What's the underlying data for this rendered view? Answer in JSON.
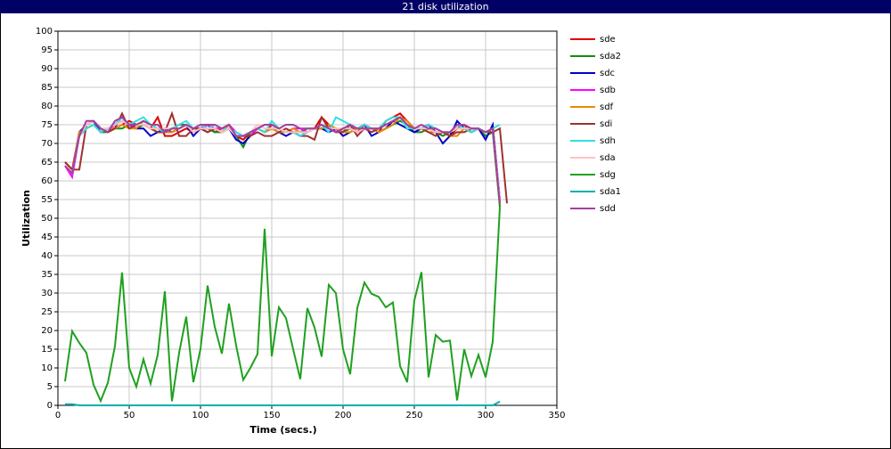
{
  "chart_data": {
    "type": "line",
    "title": "21 disk utilization",
    "x_label": "Time (secs.)",
    "y_label": "Utilization",
    "xlim": [
      0,
      350
    ],
    "xticks": [
      0,
      50,
      100,
      150,
      200,
      250,
      300,
      350
    ],
    "ylim": [
      0,
      100
    ],
    "yticks": [
      0,
      5,
      10,
      15,
      20,
      25,
      30,
      35,
      40,
      45,
      50,
      55,
      60,
      65,
      70,
      75,
      80,
      85,
      90,
      95,
      100
    ],
    "grid": true,
    "legend": "right",
    "x": [
      5,
      10,
      15,
      20,
      25,
      30,
      35,
      40,
      45,
      50,
      55,
      60,
      65,
      70,
      75,
      80,
      85,
      90,
      95,
      100,
      105,
      110,
      115,
      120,
      125,
      130,
      135,
      140,
      145,
      150,
      155,
      160,
      165,
      170,
      175,
      180,
      185,
      190,
      195,
      200,
      205,
      210,
      215,
      220,
      225,
      230,
      235,
      240,
      245,
      250,
      255,
      260,
      265,
      270,
      275,
      280,
      285,
      290,
      295,
      300,
      305,
      310,
      315
    ],
    "series": [
      {
        "name": "sde",
        "color": "#e00000",
        "values": [
          65,
          63,
          73,
          75,
          76,
          74,
          73,
          74,
          75,
          76,
          75,
          75,
          74,
          77,
          72,
          72,
          73,
          74,
          73,
          74,
          75,
          73,
          74,
          75,
          72,
          71,
          73,
          74,
          73,
          75,
          74,
          73,
          73,
          72,
          73,
          74,
          77,
          75,
          73,
          74,
          74,
          73,
          75,
          74,
          73,
          76,
          77,
          78,
          76,
          74,
          74,
          75,
          73,
          73,
          72,
          74,
          75,
          73,
          74,
          73,
          74,
          54,
          null
        ]
      },
      {
        "name": "sda2",
        "color": "#109010",
        "values": [
          64,
          62,
          72,
          74,
          75,
          73,
          73,
          74,
          74,
          75,
          74,
          75,
          74,
          73,
          73,
          74,
          75,
          75,
          74,
          74,
          74,
          73,
          73,
          74,
          72,
          69,
          73,
          74,
          73,
          74,
          74,
          73,
          73,
          73,
          74,
          74,
          74,
          75,
          74,
          73,
          74,
          73,
          74,
          74,
          73,
          74,
          75,
          76,
          75,
          73,
          73,
          74,
          73,
          72,
          73,
          74,
          74,
          73,
          74,
          72,
          73,
          53,
          null
        ]
      },
      {
        "name": "sdc",
        "color": "#0000c8",
        "values": [
          64,
          62,
          73,
          75,
          76,
          73,
          74,
          75,
          76,
          75,
          74,
          74,
          72,
          73,
          74,
          73,
          74,
          75,
          72,
          74,
          73,
          74,
          73,
          74,
          71,
          70,
          72,
          74,
          73,
          74,
          73,
          72,
          73,
          73,
          73,
          74,
          74,
          73,
          74,
          72,
          73,
          74,
          75,
          72,
          73,
          74,
          76,
          75,
          74,
          73,
          74,
          75,
          73,
          70,
          72,
          76,
          74,
          73,
          74,
          71,
          75,
          55,
          null
        ]
      },
      {
        "name": "sdb",
        "color": "#ff00ff",
        "values": [
          64,
          61,
          72,
          75,
          76,
          74,
          73,
          75,
          77,
          75,
          74,
          76,
          75,
          74,
          73,
          73,
          74,
          75,
          74,
          74,
          75,
          74,
          74,
          75,
          73,
          72,
          72,
          74,
          75,
          75,
          74,
          73,
          74,
          74,
          73,
          74,
          75,
          74,
          73,
          74,
          74,
          74,
          75,
          74,
          74,
          75,
          76,
          77,
          75,
          74,
          74,
          74,
          74,
          73,
          73,
          75,
          74,
          74,
          74,
          73,
          74,
          55,
          null
        ]
      },
      {
        "name": "sdf",
        "color": "#e88a00",
        "values": [
          64,
          62,
          73,
          74,
          75,
          73,
          74,
          74,
          75,
          74,
          74,
          76,
          75,
          74,
          73,
          73,
          74,
          75,
          74,
          74,
          74,
          74,
          73,
          75,
          72,
          72,
          73,
          74,
          73,
          74,
          73,
          73,
          74,
          73,
          73,
          74,
          74,
          75,
          74,
          73,
          73,
          74,
          74,
          74,
          73,
          74,
          75,
          77,
          76,
          74,
          74,
          73,
          73,
          73,
          72,
          72,
          74,
          73,
          74,
          73,
          74,
          54,
          null
        ]
      },
      {
        "name": "sdi",
        "color": "#a03030",
        "values": [
          65,
          63,
          63,
          75,
          76,
          74,
          73,
          74,
          78,
          74,
          75,
          75,
          74,
          73,
          73,
          78,
          72,
          72,
          74,
          74,
          73,
          74,
          73,
          74,
          72,
          72,
          72,
          73,
          72,
          72,
          73,
          74,
          73,
          72,
          72,
          71,
          77,
          74,
          73,
          73,
          75,
          72,
          74,
          73,
          74,
          75,
          76,
          77,
          75,
          74,
          74,
          73,
          72,
          73,
          72,
          73,
          73,
          74,
          74,
          73,
          73,
          74,
          54
        ]
      },
      {
        "name": "sdh",
        "color": "#30e0e0",
        "values": [
          64,
          62,
          72,
          74,
          75,
          73,
          74,
          75,
          77,
          75,
          76,
          77,
          75,
          74,
          73,
          74,
          75,
          76,
          74,
          75,
          74,
          75,
          74,
          74,
          73,
          72,
          73,
          74,
          73,
          76,
          74,
          73,
          73,
          72,
          73,
          74,
          75,
          73,
          77,
          76,
          75,
          74,
          75,
          74,
          74,
          76,
          77,
          77,
          74,
          74,
          74,
          75,
          74,
          73,
          73,
          75,
          74,
          73,
          74,
          73,
          74,
          75,
          null
        ]
      },
      {
        "name": "sda",
        "color": "#ffc0c0",
        "values": [
          64,
          62,
          72,
          75,
          76,
          74,
          74,
          75,
          76,
          75,
          75,
          75,
          74,
          74,
          74,
          74,
          74,
          75,
          73,
          74,
          74,
          74,
          73,
          74,
          72,
          72,
          73,
          75,
          74,
          74,
          74,
          73,
          73,
          73,
          73,
          74,
          75,
          74,
          74,
          74,
          74,
          73,
          74,
          74,
          74,
          75,
          76,
          77,
          75,
          74,
          74,
          74,
          73,
          73,
          73,
          74,
          74,
          74,
          74,
          73,
          74,
          55,
          null
        ]
      },
      {
        "name": "sdg",
        "color": "#20a020",
        "values": [
          6.4,
          19.8,
          16.7,
          14,
          5.5,
          1.2,
          6,
          15.8,
          35.5,
          10,
          5,
          12.3,
          5.8,
          13.5,
          30.5,
          1.1,
          14,
          23.7,
          6.2,
          15,
          32,
          21,
          13.8,
          27.2,
          16,
          6.8,
          10,
          13.7,
          47.2,
          13.1,
          26.2,
          23.3,
          15,
          7,
          26,
          20.8,
          13,
          32.2,
          30,
          15,
          8.3,
          26,
          32.8,
          29.8,
          29,
          26.2,
          27.5,
          10.5,
          6.2,
          28,
          35.6,
          7.5,
          18.8,
          17,
          17.3,
          1.3,
          15,
          7.8,
          13.5,
          7.5,
          17,
          53,
          null
        ]
      },
      {
        "name": "sda1",
        "color": "#00b0b0",
        "values": [
          0.3,
          0.3,
          0,
          0,
          0,
          0,
          0,
          0,
          0,
          0,
          0,
          0,
          0,
          0,
          0,
          0,
          0,
          0,
          0,
          0,
          0,
          0,
          0,
          0,
          0,
          0,
          0,
          0,
          0,
          0,
          0,
          0,
          0,
          0,
          0,
          0,
          0,
          0,
          0,
          0,
          0,
          0,
          0,
          0,
          0,
          0,
          0,
          0,
          0,
          0,
          0,
          0,
          0,
          0,
          0,
          0,
          0,
          0,
          0,
          0,
          0,
          1,
          null
        ]
      },
      {
        "name": "sdd",
        "color": "#a040a0",
        "values": [
          64,
          62,
          72,
          76,
          76,
          74,
          73,
          76,
          77,
          75,
          75,
          76,
          75,
          75,
          73,
          74,
          74,
          75,
          74,
          75,
          75,
          75,
          74,
          75,
          72,
          72,
          73,
          74,
          75,
          75,
          74,
          75,
          75,
          74,
          74,
          74,
          75,
          74,
          73,
          74,
          75,
          74,
          74,
          74,
          74,
          75,
          76,
          77,
          75,
          74,
          75,
          74,
          74,
          73,
          73,
          75,
          75,
          74,
          74,
          73,
          74,
          54,
          null
        ]
      }
    ]
  }
}
